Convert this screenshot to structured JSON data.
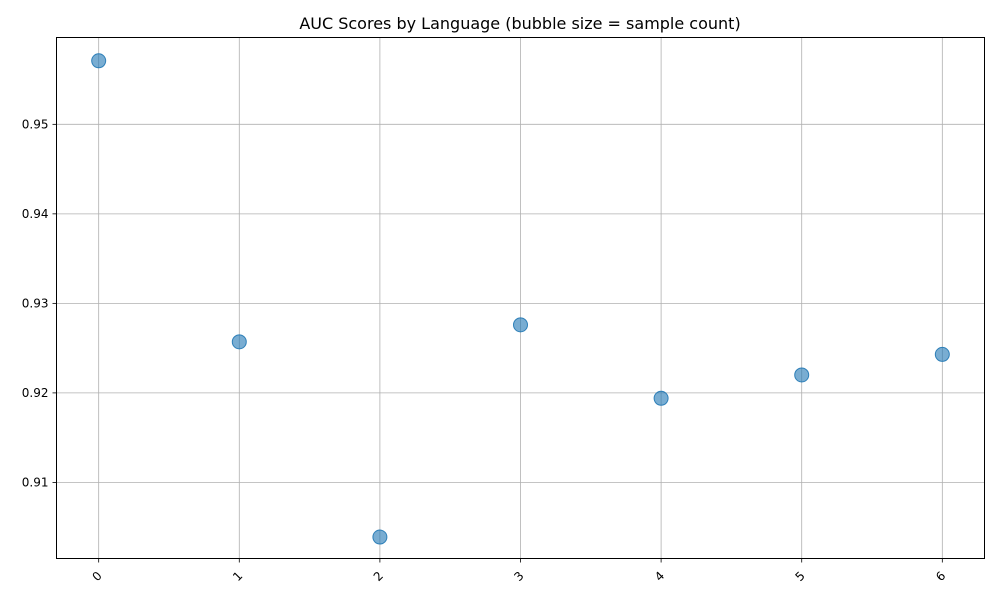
{
  "chart_data": {
    "type": "scatter",
    "title": "AUC Scores by Language (bubble size = sample count)",
    "xlabel": "",
    "ylabel": "",
    "x": [
      0,
      1,
      2,
      3,
      4,
      5,
      6
    ],
    "y": [
      0.9571,
      0.9257,
      0.9039,
      0.9276,
      0.9194,
      0.922,
      0.9243
    ],
    "xlim": [
      -0.3,
      6.3
    ],
    "ylim": [
      0.9015,
      0.9597
    ],
    "xticks": [
      0,
      1,
      2,
      3,
      4,
      5,
      6
    ],
    "xtick_labels": [
      "0",
      "1",
      "2",
      "3",
      "4",
      "5",
      "6"
    ],
    "xtick_rotation_deg": 45,
    "yticks": [
      0.91,
      0.92,
      0.93,
      0.94,
      0.95
    ],
    "ytick_labels": [
      "0.91",
      "0.92",
      "0.93",
      "0.94",
      "0.95"
    ],
    "grid": true,
    "marker_color": "#1f77b4",
    "marker_alpha": 0.6
  }
}
